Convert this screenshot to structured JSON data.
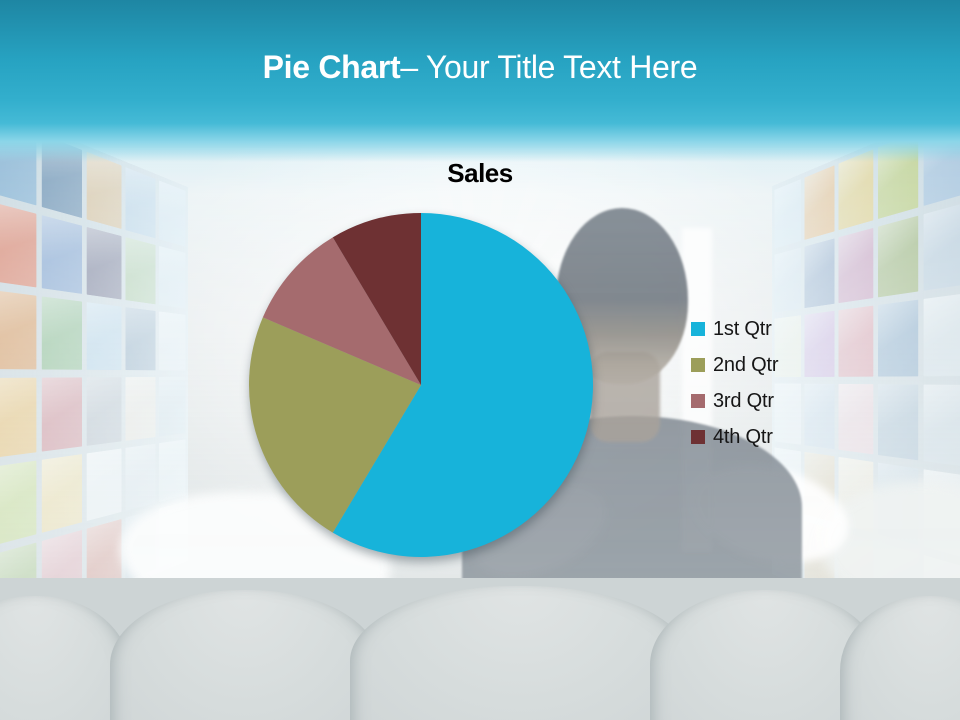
{
  "header": {
    "title_bold": "Pie Chart",
    "title_rest": "– Your Title Text Here",
    "band_gradient": [
      "#1e86a3",
      "#27a3c2",
      "#45bad6",
      "#8ad5e8"
    ],
    "title_color": "#ffffff"
  },
  "chart_data": {
    "type": "pie",
    "title": "Sales",
    "categories": [
      "1st Qtr",
      "2nd Qtr",
      "3rd Qtr",
      "4th Qtr"
    ],
    "values": [
      8.2,
      3.2,
      1.4,
      1.2
    ],
    "percentages": [
      58.6,
      22.9,
      10.0,
      8.6
    ],
    "colors": [
      "#17b3da",
      "#9c9e5a",
      "#a56b6e",
      "#6e3133"
    ],
    "start_angle_deg": 0,
    "direction": "clockwise",
    "legend_position": "right",
    "title_color": "#000000",
    "legend_text_color": "#161616",
    "has_drop_shadow": true
  },
  "background": {
    "wall_gap_color": "#8aa6b6",
    "couch_color": "#d5dbdc",
    "left_wall_tiles": [
      "#6aa0c8",
      "#3f6f9a",
      "#c8a876",
      "#97bcd8",
      "#b9d2e2",
      "#cf6a50",
      "#5d88c0",
      "#45496e",
      "#84b07a",
      "#bdd3e0",
      "#c8823f",
      "#62a36b",
      "#93bdd9",
      "#51799c",
      "#ccd8e0",
      "#d8ab52",
      "#b5636f",
      "#8f9dab",
      "#d8cfc2",
      "#a6becc",
      "#aac86e",
      "#ddc77d",
      "#d9e1e6",
      "#bccbd5",
      "#c6d4da",
      "#84ad63",
      "#c88390",
      "#b85a4b",
      "#93aec0",
      "#d0dade"
    ],
    "right_wall_tiles": [
      "#bcd4e2",
      "#d89a4d",
      "#d4bc5d",
      "#a8bf62",
      "#8fb4d4",
      "#b3c9da",
      "#567aa8",
      "#b37aa4",
      "#84a25d",
      "#a9c1d3",
      "#d6dac0",
      "#a87fc4",
      "#c87888",
      "#6a94b8",
      "#c2d3dc",
      "#cfd9e0",
      "#9db8d0",
      "#d9b8c2",
      "#8aa8be",
      "#b6c9d4",
      "#d2dce2",
      "#c2a878",
      "#dcd2b8",
      "#98b4c6",
      "#c8d6dc",
      "#cbd7dc",
      "#b0905c",
      "#c6b4a0",
      "#a2bac8",
      "#d2dce0"
    ]
  }
}
